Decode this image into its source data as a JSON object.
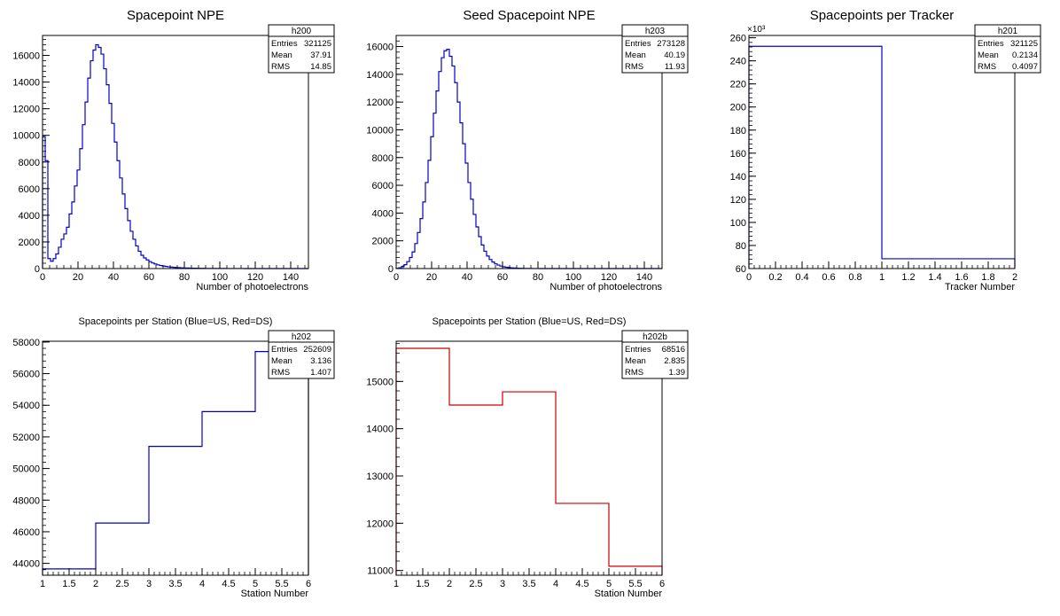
{
  "colors": {
    "blue": "#0000cc",
    "red": "#cc0000",
    "axis": "#000000"
  },
  "chart_data": [
    {
      "id": "h200",
      "type": "histogram",
      "title": "Spacepoint NPE",
      "xlabel": "Number of photoelectrons",
      "ylabel": "",
      "xlim": [
        0,
        150
      ],
      "ylim": [
        0,
        17500
      ],
      "xticks": [
        0,
        20,
        40,
        60,
        80,
        100,
        120,
        140
      ],
      "yticks": [
        0,
        2000,
        4000,
        6000,
        8000,
        10000,
        12000,
        14000,
        16000
      ],
      "color": "blue",
      "bins_x0": 0,
      "bin_width": 1.5,
      "values": [
        9900,
        8100,
        750,
        550,
        750,
        1100,
        1600,
        2200,
        2600,
        3100,
        4100,
        5000,
        6200,
        7400,
        9000,
        10800,
        12500,
        14300,
        15600,
        16400,
        16800,
        16600,
        16100,
        15000,
        13800,
        12400,
        10900,
        9500,
        8100,
        6800,
        5600,
        4500,
        3600,
        2800,
        2200,
        1700,
        1300,
        1000,
        800,
        650,
        520,
        420,
        340,
        280,
        230,
        190,
        160,
        130,
        110,
        90,
        75,
        65,
        55,
        45,
        40,
        35,
        30,
        26,
        22,
        19,
        16,
        14,
        12,
        11,
        10,
        9,
        8,
        7,
        6,
        5,
        5,
        4,
        4,
        3,
        3,
        3,
        2,
        2,
        2,
        2,
        2,
        1,
        1,
        1,
        1,
        1,
        1,
        1,
        1,
        1,
        0,
        0,
        0,
        0,
        0,
        0,
        0,
        0,
        0,
        0
      ],
      "stats": {
        "name": "h200",
        "rows": [
          {
            "label": "Entries",
            "value": "321125"
          },
          {
            "label": "Mean",
            "value": "37.91"
          },
          {
            "label": "RMS",
            "value": "14.85"
          }
        ]
      }
    },
    {
      "id": "h203",
      "type": "histogram",
      "title": "Seed Spacepoint NPE",
      "xlabel": "Number of photoelectrons",
      "ylabel": "",
      "xlim": [
        0,
        150
      ],
      "ylim": [
        0,
        16800
      ],
      "xticks": [
        0,
        20,
        40,
        60,
        80,
        100,
        120,
        140
      ],
      "yticks": [
        0,
        2000,
        4000,
        6000,
        8000,
        10000,
        12000,
        14000,
        16000
      ],
      "color": "blue",
      "bins_x0": 0,
      "bin_width": 1.5,
      "values": [
        20,
        60,
        150,
        280,
        500,
        800,
        1200,
        1800,
        2600,
        3600,
        4800,
        6200,
        7800,
        9500,
        11200,
        12800,
        14200,
        15200,
        15700,
        15800,
        15300,
        14600,
        13400,
        12000,
        10500,
        9000,
        7600,
        6200,
        5000,
        3900,
        3000,
        2300,
        1700,
        1250,
        900,
        650,
        470,
        340,
        250,
        180,
        130,
        95,
        70,
        50,
        38,
        28,
        20,
        15,
        11,
        8,
        6,
        5,
        4,
        3,
        2,
        2,
        1,
        1,
        1,
        1,
        0,
        0,
        0,
        0,
        0,
        0,
        0,
        0,
        0,
        0,
        0,
        0,
        0,
        0,
        0,
        0,
        0,
        0,
        0,
        0,
        0,
        0,
        0,
        0,
        0,
        0,
        0,
        0,
        0,
        0,
        0,
        0,
        0,
        0,
        0,
        0,
        0,
        0,
        0,
        0
      ],
      "stats": {
        "name": "h203",
        "rows": [
          {
            "label": "Entries",
            "value": "273128"
          },
          {
            "label": "Mean",
            "value": "40.19"
          },
          {
            "label": "RMS",
            "value": "11.93"
          }
        ]
      }
    },
    {
      "id": "h201",
      "type": "histogram",
      "title": "Spacepoints per Tracker",
      "xlabel": "Tracker Number",
      "ylabel": "",
      "xlim": [
        0,
        2
      ],
      "ylim": [
        60,
        262
      ],
      "xticks": [
        0,
        0.2,
        0.4,
        0.6,
        0.8,
        1,
        1.2,
        1.4,
        1.6,
        1.8,
        2
      ],
      "yticks": [
        60,
        80,
        100,
        120,
        140,
        160,
        180,
        200,
        220,
        240,
        260
      ],
      "multiplier_label": "×10³",
      "color": "blue",
      "bins_x0": 0,
      "bin_width": 1,
      "values": [
        252.6,
        68.5
      ],
      "stats": {
        "name": "h201",
        "rows": [
          {
            "label": "Entries",
            "value": "321125"
          },
          {
            "label": "Mean",
            "value": "0.2134"
          },
          {
            "label": "RMS",
            "value": "0.4097"
          }
        ]
      }
    },
    {
      "id": "h202",
      "type": "histogram",
      "title": "Spacepoints per Station (Blue=US, Red=DS)",
      "xlabel": "Station Number",
      "ylabel": "",
      "xlim": [
        1,
        6
      ],
      "ylim": [
        43250,
        58050
      ],
      "xticks": [
        1,
        1.5,
        2,
        2.5,
        3,
        3.5,
        4,
        4.5,
        5,
        5.5,
        6
      ],
      "yticks": [
        44000,
        46000,
        48000,
        50000,
        52000,
        54000,
        56000,
        58000
      ],
      "color": "blue",
      "bins_x0": 1,
      "bin_width": 1,
      "values": [
        43650,
        46550,
        51400,
        53600,
        57400
      ],
      "stats": {
        "name": "h202",
        "rows": [
          {
            "label": "Entries",
            "value": "252609"
          },
          {
            "label": "Mean",
            "value": "3.136"
          },
          {
            "label": "RMS",
            "value": "1.407"
          }
        ]
      }
    },
    {
      "id": "h202b",
      "type": "histogram",
      "title": "Spacepoints per Station (Blue=US, Red=DS)",
      "xlabel": "Station Number",
      "ylabel": "",
      "xlim": [
        1,
        6
      ],
      "ylim": [
        10900,
        15850
      ],
      "xticks": [
        1,
        1.5,
        2,
        2.5,
        3,
        3.5,
        4,
        4.5,
        5,
        5.5,
        6
      ],
      "yticks": [
        11000,
        12000,
        13000,
        14000,
        15000
      ],
      "color": "red",
      "bins_x0": 1,
      "bin_width": 1,
      "values": [
        15700,
        14500,
        14780,
        12420,
        11090
      ],
      "stats": {
        "name": "h202b",
        "rows": [
          {
            "label": "Entries",
            "value": "68516"
          },
          {
            "label": "Mean",
            "value": "2.835"
          },
          {
            "label": "RMS",
            "value": "1.39"
          }
        ]
      }
    }
  ]
}
